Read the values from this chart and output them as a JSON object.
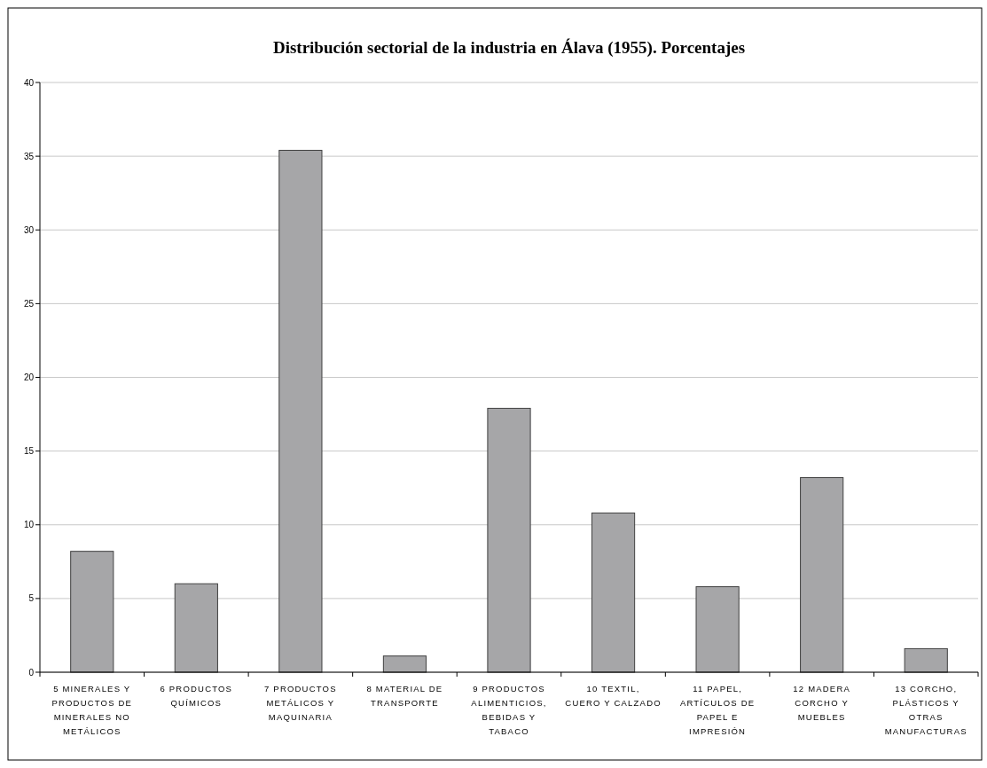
{
  "chart_data": {
    "type": "bar",
    "title": "Distribución sectorial de la industria en Álava (1955). Porcentajes",
    "categories": [
      "5 MINERALES Y PRODUCTOS DE MINERALES NO METÁLICOS",
      "6 PRODUCTOS QUÍMICOS",
      "7 PRODUCTOS METÁLICOS Y MAQUINARIA",
      "8 MATERIAL DE TRANSPORTE",
      "9 PRODUCTOS ALIMENTICIOS, BEBIDAS Y TABACO",
      "10 TEXTIL, CUERO Y CALZADO",
      "11 PAPEL, ARTÍCULOS DE PAPEL E IMPRESIÓN",
      "12 MADERA CORCHO Y MUEBLES",
      "13 CORCHO, PLÁSTICOS Y OTRAS MANUFACTURAS"
    ],
    "values": [
      8.2,
      6.0,
      35.4,
      1.1,
      17.9,
      10.8,
      5.8,
      13.2,
      1.6
    ],
    "color": "#a6a6a8",
    "ylim": [
      0,
      40
    ],
    "yticks": [
      0,
      5,
      10,
      15,
      20,
      25,
      30,
      35,
      40
    ],
    "grid": "y"
  }
}
